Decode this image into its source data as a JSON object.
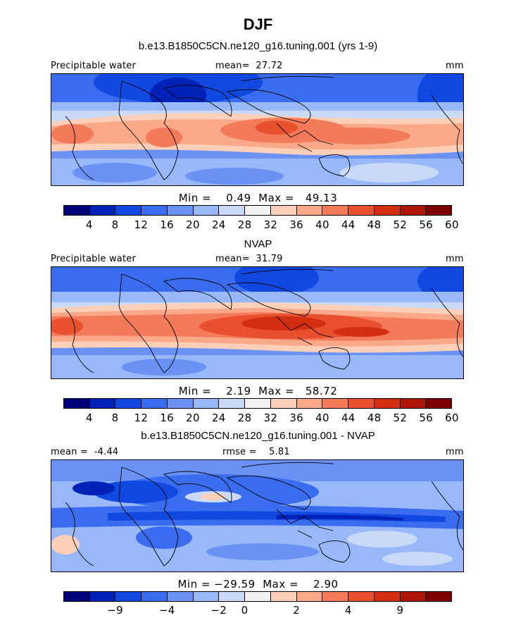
{
  "figure": {
    "title": "DJF"
  },
  "panels": [
    {
      "subtitle": "b.e13.B1850C5CN.ne120_g16.tuning.001 (yrs 1-9)",
      "left_label": "Precipitable water",
      "center_label": "mean=  27.72",
      "right_label": "mm",
      "stats": "Min =    0.49  Max =   49.13",
      "colors": [
        "#00007a",
        "#0022b8",
        "#1048e0",
        "#3a6cf0",
        "#6a92f5",
        "#98b8fa",
        "#c8daf8",
        "#f1f1f1",
        "#fcd0b8",
        "#f9a98a",
        "#f37b5a",
        "#e8502e",
        "#d42e10",
        "#ad1608",
        "#7e0000"
      ],
      "tick_labels": [
        "4",
        "8",
        "12",
        "16",
        "20",
        "24",
        "28",
        "32",
        "36",
        "40",
        "44",
        "48",
        "52",
        "56",
        "60"
      ]
    },
    {
      "subtitle": "NVAP",
      "left_label": "Precipitable water",
      "center_label": "mean=  31.79",
      "right_label": "mm",
      "stats": "Min =    2.19  Max =   58.72",
      "colors": [
        "#00007a",
        "#0022b8",
        "#1048e0",
        "#3a6cf0",
        "#6a92f5",
        "#98b8fa",
        "#c8daf8",
        "#f1f1f1",
        "#fcd0b8",
        "#f9a98a",
        "#f37b5a",
        "#e8502e",
        "#d42e10",
        "#ad1608",
        "#7e0000"
      ],
      "tick_labels": [
        "4",
        "8",
        "12",
        "16",
        "20",
        "24",
        "28",
        "32",
        "36",
        "40",
        "44",
        "48",
        "52",
        "56",
        "60"
      ]
    },
    {
      "subtitle": "b.e13.B1850C5CN.ne120_g16.tuning.001 - NVAP",
      "left_label": "mean =  -4.44",
      "center_label": "rmse =    5.81",
      "right_label": "mm",
      "stats": "Min = −29.59  Max =    2.90",
      "colors": [
        "#00007a",
        "#0022b8",
        "#1048e0",
        "#3a6cf0",
        "#6a92f5",
        "#98b8fa",
        "#c8daf8",
        "#f1f1f1",
        "#fcd0b8",
        "#f9a98a",
        "#f37b5a",
        "#e8502e",
        "#d42e10",
        "#ad1608",
        "#7e0000"
      ],
      "tick_labels": [
        "−9",
        "−4",
        "−2",
        "0",
        "2",
        "4",
        "9"
      ]
    }
  ]
}
